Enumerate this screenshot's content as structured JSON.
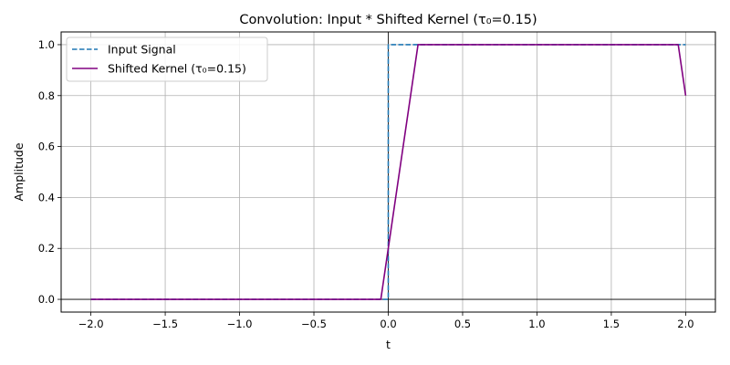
{
  "chart_data": {
    "type": "line",
    "title": "Convolution: Input * Shifted Kernel (τ₀=0.15)",
    "xlabel": "t",
    "ylabel": "Amplitude",
    "xlim": [
      -2.2,
      2.2
    ],
    "ylim": [
      -0.05,
      1.05
    ],
    "xticks": [
      -2.0,
      -1.5,
      -1.0,
      -0.5,
      0.0,
      0.5,
      1.0,
      1.5,
      2.0
    ],
    "xtick_labels": [
      "−2.0",
      "−1.5",
      "−1.0",
      "−0.5",
      "0.0",
      "0.5",
      "1.0",
      "1.5",
      "2.0"
    ],
    "yticks": [
      0.0,
      0.2,
      0.4,
      0.6,
      0.8,
      1.0
    ],
    "ytick_labels": [
      "0.0",
      "0.2",
      "0.4",
      "0.6",
      "0.8",
      "1.0"
    ],
    "grid": true,
    "legend_position": "top-left",
    "series": [
      {
        "name": "Input Signal",
        "color": "#1f77b4",
        "style": "dashed",
        "x": [
          -2.0,
          0.0,
          0.0,
          2.0
        ],
        "y": [
          0.0,
          0.0,
          1.0,
          1.0
        ]
      },
      {
        "name": "Shifted Kernel (τ₀=0.15)",
        "color": "#800080",
        "style": "solid",
        "x": [
          -2.0,
          -0.05,
          0.2,
          1.95,
          2.0
        ],
        "y": [
          0.0,
          0.0,
          1.0,
          1.0,
          0.8
        ]
      }
    ],
    "reference_lines": {
      "horizontal_y": 0.0,
      "vertical_x": 0.0,
      "color": "#000000"
    }
  }
}
